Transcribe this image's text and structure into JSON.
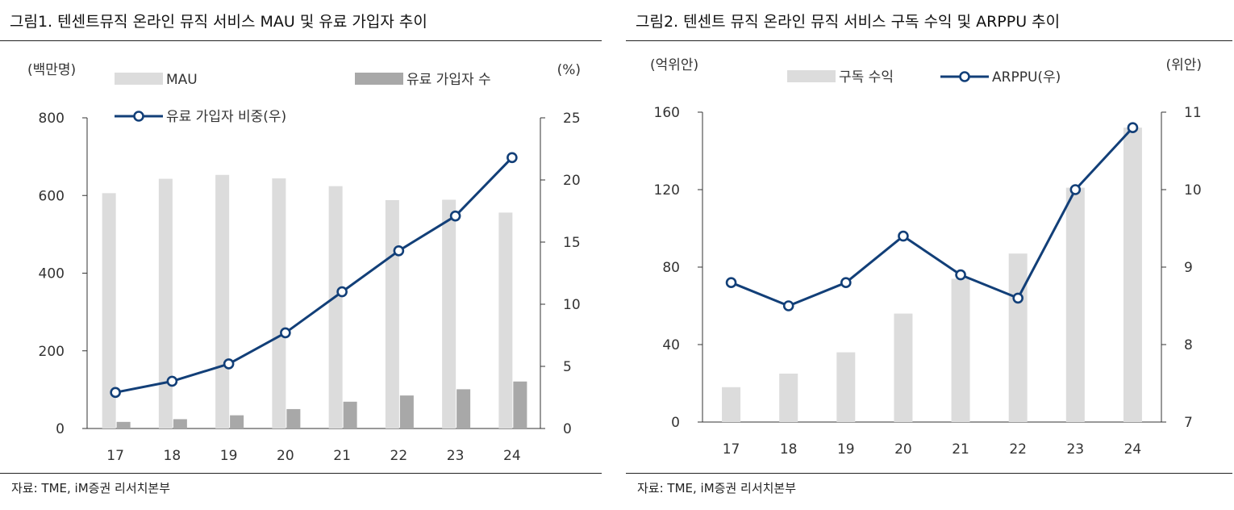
{
  "source_note": "자료: TME, iM증권 리서치본부",
  "colors": {
    "bar_light": "#dcdcdc",
    "bar_dark": "#a8a8a8",
    "line": "#123f78",
    "axis": "#333333"
  },
  "chart_data": [
    {
      "type": "bar+line",
      "title": "그림1.  텐센트뮤직 온라인 뮤직 서비스 MAU 및 유료 가입자 추이",
      "categories": [
        "17",
        "18",
        "19",
        "20",
        "21",
        "22",
        "23",
        "24"
      ],
      "left_axis_unit": "(백만명)",
      "right_axis_unit": "(%)",
      "ylim_left": [
        0,
        800
      ],
      "yticks_left": [
        "0",
        "200",
        "400",
        "600",
        "800"
      ],
      "ylim_right": [
        0,
        25
      ],
      "yticks_right": [
        "0",
        "5",
        "10",
        "15",
        "20",
        "25"
      ],
      "series": [
        {
          "name": "MAU",
          "kind": "bar",
          "axis": "left",
          "values": [
            606,
            643,
            653,
            644,
            624,
            588,
            589,
            556
          ]
        },
        {
          "name": "유료 가입자 수",
          "kind": "bar",
          "axis": "left",
          "values": [
            17,
            24,
            34,
            50,
            69,
            85,
            101,
            121
          ]
        },
        {
          "name": "유료 가입자 비중(우)",
          "kind": "line",
          "axis": "right",
          "values": [
            2.9,
            3.8,
            5.2,
            7.7,
            11.0,
            14.3,
            17.1,
            21.8
          ]
        }
      ],
      "grid": false,
      "legend_position": "top"
    },
    {
      "type": "bar+line",
      "title": "그림2.  텐센트 뮤직 온라인 뮤직 서비스 구독 수익 및 ARPPU 추이",
      "categories": [
        "17",
        "18",
        "19",
        "20",
        "21",
        "22",
        "23",
        "24"
      ],
      "left_axis_unit": "(억위안)",
      "right_axis_unit": "(위안)",
      "ylim_left": [
        0,
        160
      ],
      "yticks_left": [
        "0",
        "40",
        "80",
        "120",
        "160"
      ],
      "ylim_right": [
        7,
        11
      ],
      "yticks_right": [
        "7",
        "8",
        "9",
        "10",
        "11"
      ],
      "series": [
        {
          "name": "구독 수익",
          "kind": "bar",
          "axis": "left",
          "values": [
            18,
            25,
            36,
            56,
            74,
            87,
            121,
            152
          ]
        },
        {
          "name": "ARPPU(우)",
          "kind": "line",
          "axis": "right",
          "values": [
            8.8,
            8.5,
            8.8,
            9.4,
            8.9,
            8.6,
            10.0,
            10.8
          ]
        }
      ],
      "grid": false,
      "legend_position": "top"
    }
  ]
}
